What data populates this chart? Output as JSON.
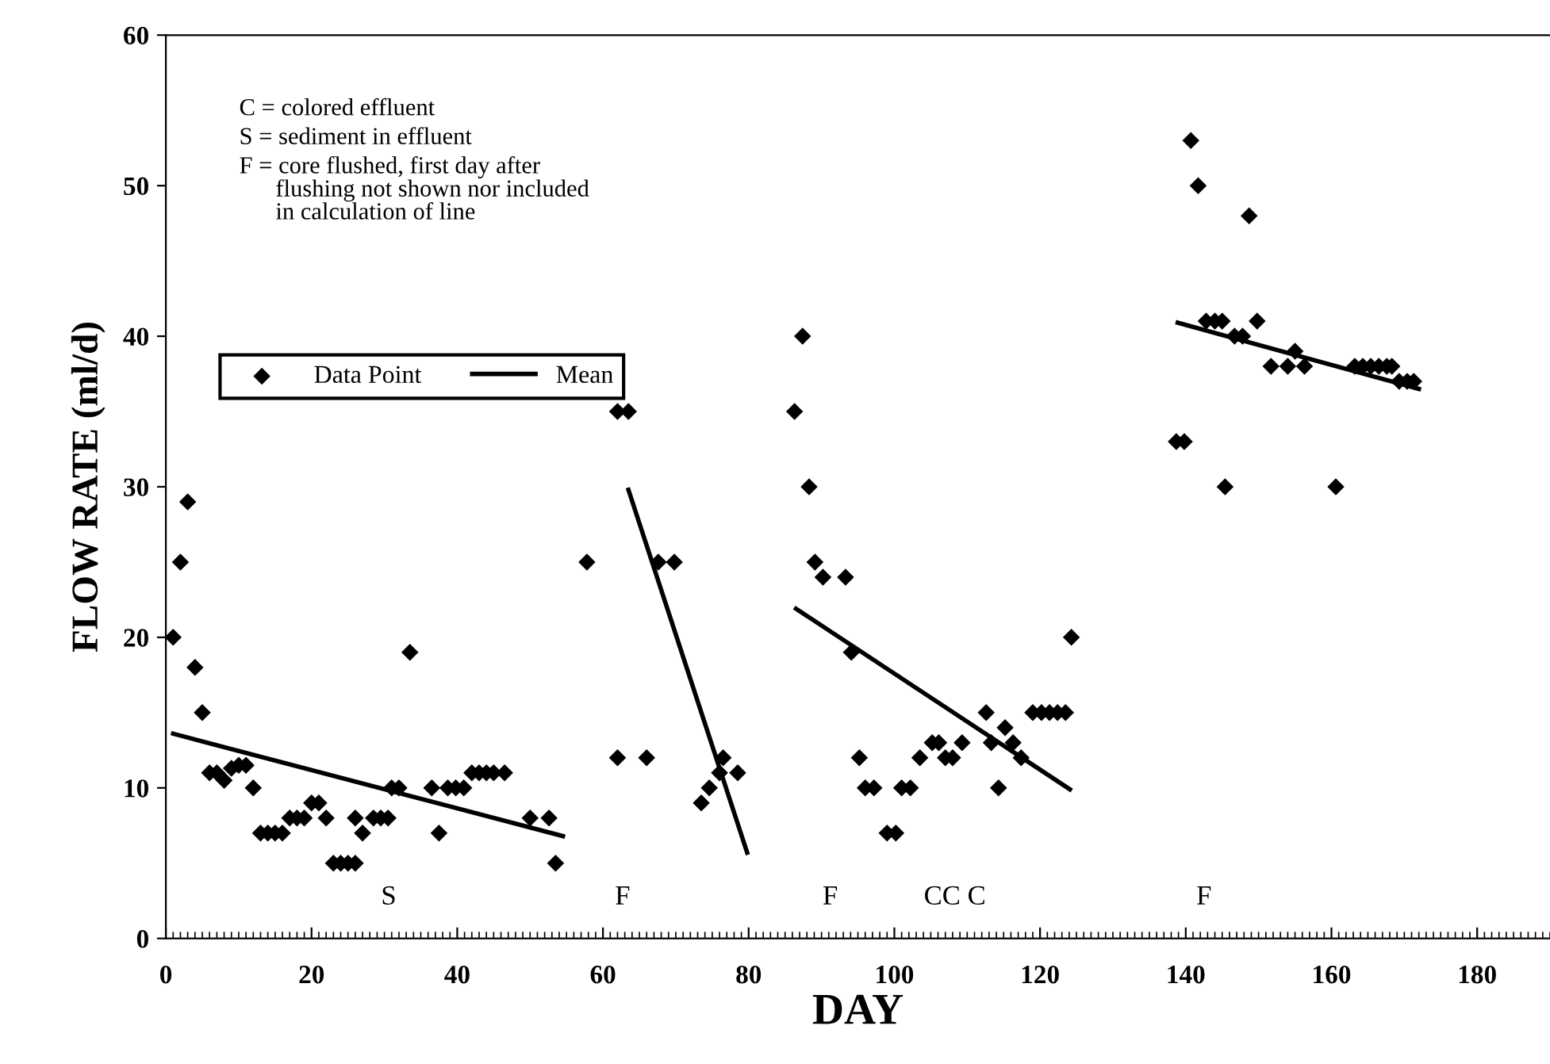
{
  "chart_data": {
    "type": "scatter",
    "xlabel": "DAY",
    "ylabel": "FLOW RATE (ml/d)",
    "xlim": [
      0,
      190
    ],
    "ylim": [
      0,
      60
    ],
    "xticks": [
      0,
      20,
      40,
      60,
      80,
      100,
      120,
      140,
      160,
      180
    ],
    "yticks": [
      0,
      10,
      20,
      30,
      40,
      50,
      60
    ],
    "grid": false,
    "legend": "top left",
    "series": [
      {
        "name": "Data Point",
        "marker": "diamond",
        "color": "#000000",
        "x": [
          1,
          2,
          3,
          4,
          5,
          6,
          7,
          8,
          9,
          10,
          11,
          12,
          13,
          14,
          15,
          16,
          17,
          18,
          19,
          20,
          21,
          22,
          23,
          24,
          25,
          26,
          26,
          27,
          28.5,
          29.5,
          30.5,
          31,
          32,
          33.5,
          36.5,
          37.5,
          38.7,
          39.8,
          40.9,
          42,
          43,
          44,
          45,
          46.5,
          50,
          52.6,
          53.5,
          57.8,
          62,
          62,
          63.5,
          66,
          67.6,
          69.8,
          73.5,
          74.6,
          76,
          76.5,
          78.5,
          86.3,
          87.4,
          88.3,
          89.1,
          90.2,
          93.3,
          94.1,
          95.2,
          96,
          97.2,
          99,
          100.2,
          101,
          102.2,
          103.5,
          105.2,
          106.1,
          107,
          108,
          109.3,
          112.6,
          113.3,
          114.3,
          115.2,
          116.3,
          117.4,
          119,
          120.2,
          121.3,
          122.4,
          123.5,
          124.3,
          138.7,
          139.8,
          140.7,
          141.7,
          142.8,
          144,
          145,
          145.4,
          146.7,
          147.8,
          148.7,
          149.8,
          151.7,
          154,
          155,
          156.3,
          160.6,
          163.2,
          164.3,
          165.4,
          166.5,
          167.6,
          168.3,
          169.3,
          170.4,
          171.3
        ],
        "values": [
          20,
          25,
          29,
          18,
          15,
          11,
          11,
          10.5,
          11.3,
          11.5,
          11.5,
          10,
          7,
          7,
          7,
          7,
          8,
          8,
          8,
          9,
          9,
          8,
          5,
          5,
          5,
          5,
          8,
          7,
          8,
          8,
          8,
          10,
          10,
          19,
          10,
          7,
          10,
          10,
          10,
          11,
          11,
          11,
          11,
          11,
          8,
          8,
          5,
          25,
          12,
          35,
          35,
          12,
          25,
          25,
          9,
          10,
          11,
          12,
          11,
          35,
          40,
          30,
          25,
          24,
          24,
          19,
          12,
          10,
          10,
          7,
          7,
          10,
          10,
          12,
          13,
          13,
          12,
          12,
          13,
          15,
          13,
          10,
          14,
          13,
          12,
          15,
          15,
          15,
          15,
          15,
          20,
          33,
          33,
          53,
          50,
          41,
          41,
          41,
          30,
          40,
          40,
          48,
          41,
          38,
          38,
          39,
          38,
          30,
          38,
          38,
          38,
          38,
          38,
          38,
          37,
          37,
          37
        ]
      },
      {
        "name": "Mean",
        "type": "line",
        "color": "#000000",
        "x": [
          1,
          54.5
        ],
        "values": [
          13.6,
          6.8
        ]
      },
      {
        "type": "line",
        "color": "#000000",
        "x": [
          63.5,
          79.8
        ],
        "values": [
          29.8,
          5.7
        ]
      },
      {
        "type": "line",
        "color": "#000000",
        "x": [
          86.5,
          124.1
        ],
        "values": [
          21.9,
          9.9
        ]
      },
      {
        "type": "line",
        "color": "#000000",
        "x": [
          138.9,
          172
        ],
        "values": [
          40.9,
          36.5
        ]
      }
    ],
    "annotations": [
      "C = colored effluent",
      "S = sediment in effluent",
      "F = core flushed, first day after\n      flushing not shown nor included\n      in calculation of line",
      "S",
      "F",
      "F",
      "CC C",
      "F"
    ]
  }
}
